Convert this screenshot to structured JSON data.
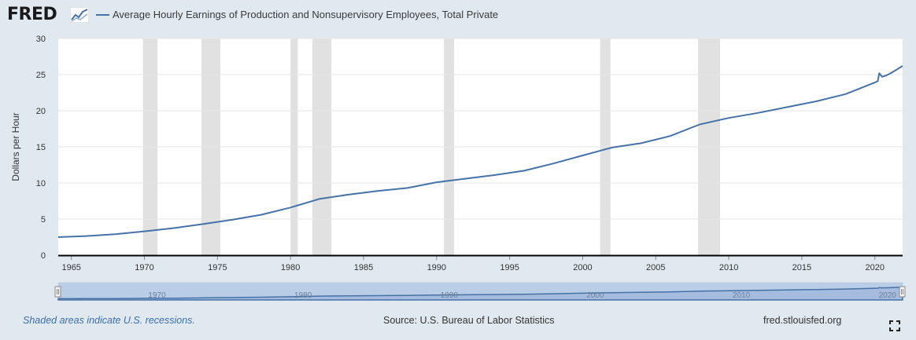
{
  "header": {
    "logo": "FRED",
    "logo_icon": "line-chart-icon",
    "series_label": "Average Hourly Earnings of Production and Nonsupervisory Employees, Total Private"
  },
  "footer": {
    "recession_note": "Shaded areas indicate U.S. recessions.",
    "source": "Source: U.S. Bureau of Labor Statistics",
    "site": "fred.stlouisfed.org",
    "fullscreen_icon": "fullscreen-icon"
  },
  "colors": {
    "series": "#4572a7",
    "recession": "#e1e1e1",
    "background": "#e1e9f0"
  },
  "chart_data": {
    "type": "line",
    "title": "",
    "xlabel": "",
    "ylabel": "Dollars per Hour",
    "xlim": [
      1964.1,
      2021.9
    ],
    "ylim": [
      0,
      30
    ],
    "y_ticks": [
      0,
      5,
      10,
      15,
      20,
      25,
      30
    ],
    "x_ticks": [
      1965,
      1970,
      1975,
      1980,
      1985,
      1990,
      1995,
      2000,
      2005,
      2010,
      2015,
      2020
    ],
    "grid": true,
    "legend": "top-left",
    "recessions": [
      [
        1969.9,
        1970.9
      ],
      [
        1973.9,
        1975.2
      ],
      [
        1980.0,
        1980.5
      ],
      [
        1981.5,
        1982.8
      ],
      [
        1990.5,
        1991.2
      ],
      [
        2001.2,
        2001.9
      ],
      [
        2007.9,
        2009.4
      ]
    ],
    "series": [
      {
        "name": "Average Hourly Earnings of Production and Nonsupervisory Employees, Total Private",
        "x": [
          1964.1,
          1966,
          1968,
          1970,
          1972,
          1974,
          1976,
          1978,
          1980,
          1982,
          1984,
          1986,
          1988,
          1990,
          1992,
          1994,
          1996,
          1998,
          2000,
          2002,
          2004,
          2006,
          2008,
          2010,
          2012,
          2014,
          2016,
          2018,
          2020.0,
          2020.2,
          2020.3,
          2020.5,
          2020.8,
          2021.0,
          2021.5,
          2021.9
        ],
        "y": [
          2.5,
          2.65,
          2.9,
          3.3,
          3.75,
          4.3,
          4.9,
          5.6,
          6.6,
          7.8,
          8.4,
          8.9,
          9.3,
          10.1,
          10.6,
          11.1,
          11.7,
          12.7,
          13.8,
          14.9,
          15.5,
          16.5,
          18.1,
          19.0,
          19.7,
          20.5,
          21.3,
          22.3,
          23.9,
          24.1,
          25.2,
          24.7,
          24.9,
          25.1,
          25.7,
          26.2
        ]
      }
    ]
  },
  "navigator": {
    "labels": [
      "1970",
      "1980",
      "1990",
      "2000",
      "2010",
      "2020"
    ]
  }
}
